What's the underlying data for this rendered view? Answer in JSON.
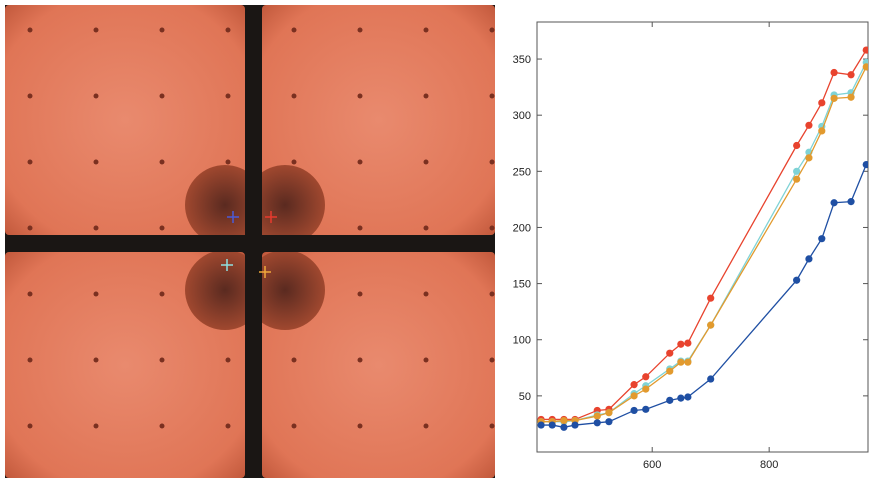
{
  "chart_data": {
    "type": "line",
    "x": [
      410,
      429,
      449,
      468,
      506,
      526,
      569,
      589,
      630,
      649,
      661,
      700,
      847,
      868,
      890,
      911,
      940,
      966
    ],
    "series": [
      {
        "color": "#e8432e",
        "values": [
          29,
          29,
          29,
          29,
          37,
          38,
          60,
          67,
          88,
          96,
          97,
          137,
          273,
          291,
          311,
          338,
          336,
          358
        ]
      },
      {
        "color": "#7fd3d6",
        "values": [
          27,
          27,
          27,
          28,
          33,
          35,
          52,
          59,
          74,
          81,
          81,
          113,
          250,
          267,
          290,
          318,
          320,
          347
        ]
      },
      {
        "color": "#e29a2e",
        "values": [
          27,
          27,
          28,
          28,
          32,
          35,
          50,
          56,
          72,
          80,
          80,
          113,
          243,
          262,
          286,
          315,
          316,
          343
        ]
      },
      {
        "color": "#1f4fa3",
        "values": [
          24,
          24,
          22,
          24,
          26,
          27,
          37,
          38,
          46,
          48,
          49,
          65,
          153,
          172,
          190,
          222,
          223,
          256
        ]
      }
    ],
    "xlim": [
      403,
      969
    ],
    "ylim": [
      0,
      383
    ],
    "xticks": [
      600,
      800
    ],
    "yticks": [
      50,
      100,
      150,
      200,
      250,
      300,
      350
    ]
  }
}
